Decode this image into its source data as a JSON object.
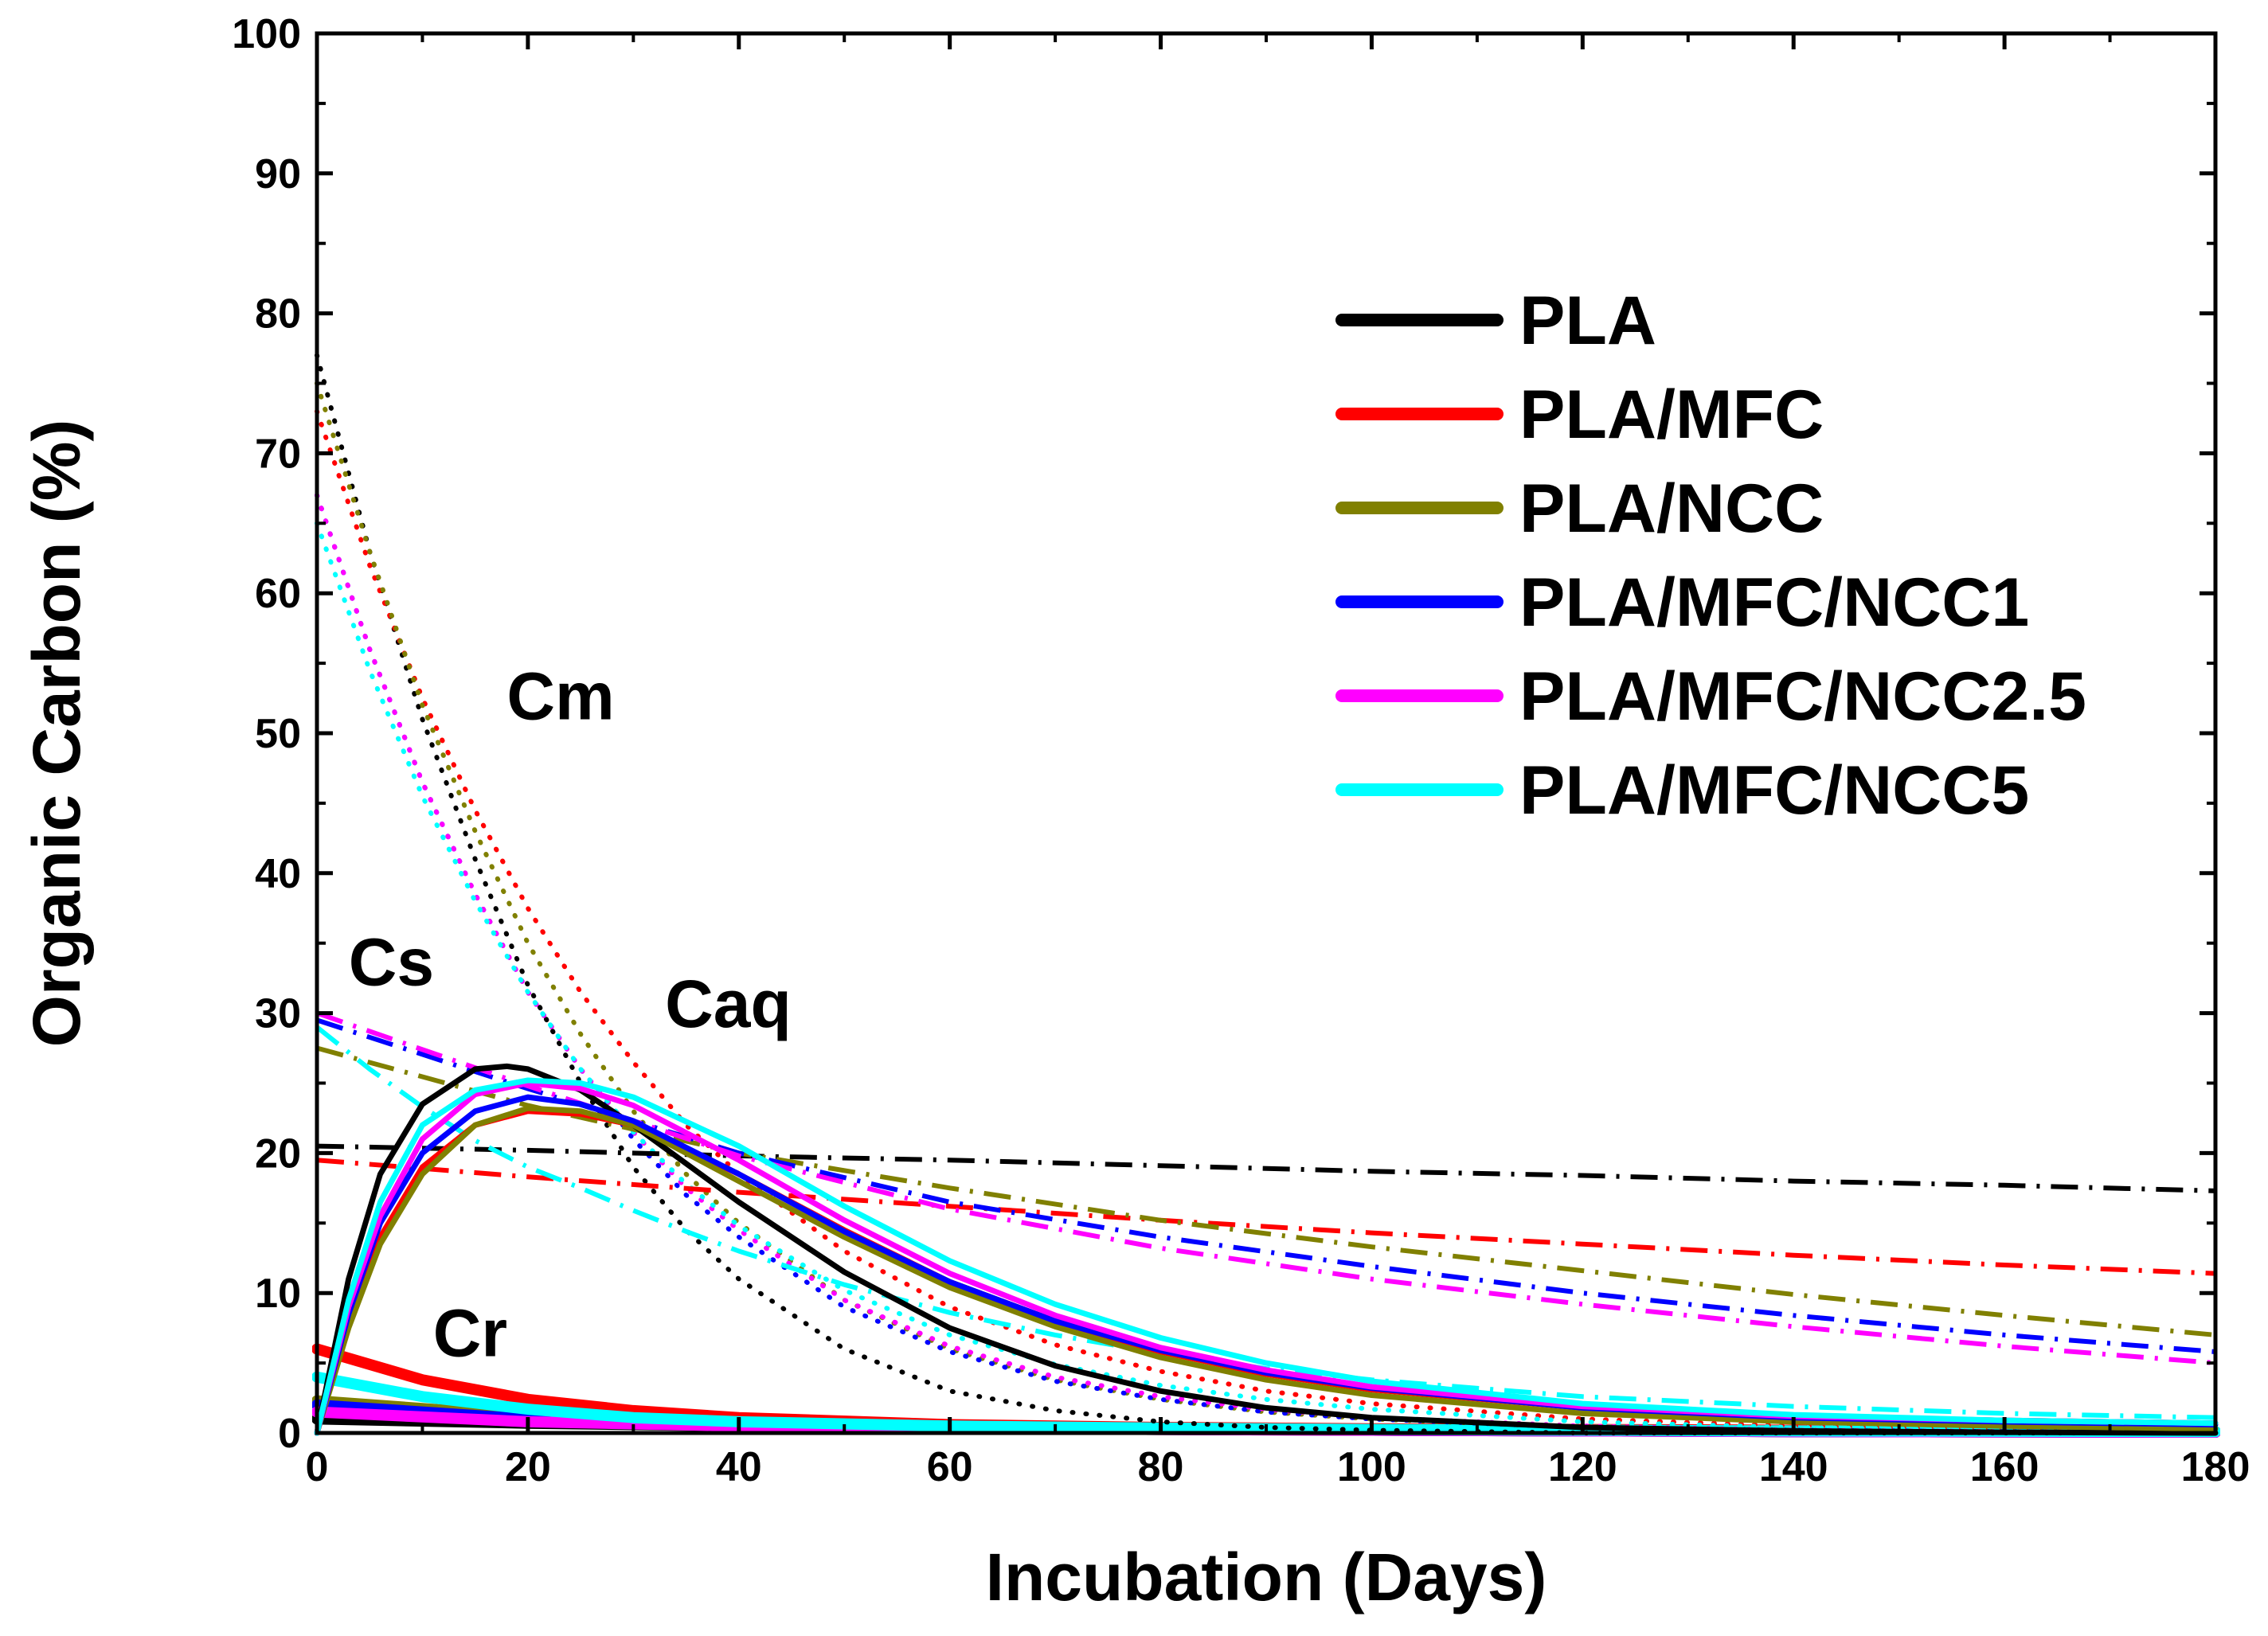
{
  "chart_data": {
    "type": "line",
    "title": "",
    "xlabel": "Incubation (Days)",
    "ylabel": "Organic Carbon (%)",
    "xlim": [
      0,
      180
    ],
    "ylim": [
      0,
      100
    ],
    "xticks": [
      "0",
      "20",
      "40",
      "60",
      "80",
      "100",
      "120",
      "140",
      "160",
      "180"
    ],
    "yticks": [
      "0",
      "10",
      "20",
      "30",
      "40",
      "50",
      "60",
      "70",
      "80",
      "90",
      "100"
    ],
    "grid": false,
    "legend_position": "top-right",
    "annotations": [
      {
        "text": "Cm",
        "x": 18,
        "y": 51
      },
      {
        "text": "Cs",
        "x": 3,
        "y": 32
      },
      {
        "text": "Caq",
        "x": 33,
        "y": 29
      },
      {
        "text": "Cr",
        "x": 11,
        "y": 5.5
      }
    ],
    "component_styles": {
      "Cm": "dotted",
      "Cs": "dash-dot",
      "Caq": "solid",
      "Cr": "solid-thick"
    },
    "series": [
      {
        "name": "PLA",
        "color": "#000000",
        "Cm": {
          "x": [
            0,
            5,
            10,
            15,
            20,
            25,
            30,
            35,
            40,
            50,
            60,
            70,
            80,
            90,
            100,
            120,
            140,
            160,
            180
          ],
          "y": [
            77,
            63,
            51,
            41,
            32,
            25,
            19,
            14.5,
            11,
            6,
            3,
            1.6,
            0.8,
            0.4,
            0.2,
            0,
            0,
            0,
            0
          ]
        },
        "Cs": {
          "x": [
            0,
            20,
            40,
            60,
            80,
            100,
            120,
            140,
            160,
            180
          ],
          "y": [
            20.5,
            20.2,
            19.8,
            19.5,
            19.1,
            18.7,
            18.4,
            18.0,
            17.7,
            17.3
          ]
        },
        "Caq": {
          "x": [
            0,
            3,
            6,
            10,
            15,
            18,
            20,
            25,
            30,
            40,
            50,
            60,
            70,
            80,
            90,
            100,
            120,
            140,
            160,
            180
          ],
          "y": [
            0,
            11,
            18.5,
            23.5,
            26,
            26.2,
            26,
            24.5,
            22,
            16.5,
            11.5,
            7.5,
            4.8,
            3.0,
            1.8,
            1.1,
            0.4,
            0.15,
            0.05,
            0
          ]
        },
        "Cr": {
          "x": [
            0,
            20,
            40,
            60,
            80,
            100,
            120,
            140,
            160,
            180
          ],
          "y": [
            1,
            0.7,
            0.5,
            0.35,
            0.25,
            0.2,
            0.15,
            0.1,
            0.08,
            0.05
          ]
        }
      },
      {
        "name": "PLA/MFC",
        "color": "#ff0000",
        "Cm": {
          "x": [
            0,
            5,
            10,
            15,
            20,
            25,
            30,
            35,
            40,
            50,
            60,
            70,
            80,
            90,
            100,
            120,
            140,
            160,
            180
          ],
          "y": [
            73,
            62,
            52.5,
            44.5,
            37.5,
            31.5,
            26.5,
            22,
            18.5,
            13,
            9,
            6.3,
            4.4,
            3,
            2.1,
            1,
            0.5,
            0.2,
            0.1
          ]
        },
        "Cs": {
          "x": [
            0,
            20,
            40,
            60,
            80,
            100,
            120,
            140,
            160,
            180
          ],
          "y": [
            19.5,
            18.3,
            17.2,
            16.2,
            15.2,
            14.3,
            13.5,
            12.7,
            12.0,
            11.4
          ]
        },
        "Caq": {
          "x": [
            0,
            3,
            6,
            10,
            15,
            20,
            25,
            30,
            40,
            50,
            60,
            70,
            80,
            90,
            100,
            120,
            140,
            160,
            180
          ],
          "y": [
            0,
            8,
            14,
            19,
            22,
            23,
            22.8,
            22,
            18.5,
            14.5,
            10.8,
            8,
            5.8,
            4.2,
            3.1,
            1.8,
            1.2,
            0.9,
            0.7
          ]
        },
        "Cr": {
          "x": [
            0,
            10,
            20,
            30,
            40,
            60,
            80,
            100,
            140,
            180
          ],
          "y": [
            6,
            3.8,
            2.4,
            1.6,
            1.1,
            0.6,
            0.4,
            0.3,
            0.2,
            0.1
          ]
        }
      },
      {
        "name": "PLA/NCC",
        "color": "#808000",
        "Cm": {
          "x": [
            0,
            5,
            10,
            15,
            20,
            25,
            30,
            35,
            40,
            50,
            60,
            70,
            80,
            90,
            100,
            120,
            140,
            160,
            180
          ],
          "y": [
            75,
            63,
            52,
            43,
            35,
            28.5,
            23,
            18.5,
            15,
            9.5,
            6,
            3.8,
            2.4,
            1.5,
            1,
            0.4,
            0.2,
            0.1,
            0
          ]
        },
        "Cs": {
          "x": [
            0,
            20,
            40,
            60,
            80,
            100,
            120,
            140,
            160,
            180
          ],
          "y": [
            27.5,
            23.4,
            20.0,
            17.5,
            15.2,
            13.3,
            11.6,
            9.9,
            8.4,
            7.0
          ]
        },
        "Caq": {
          "x": [
            0,
            3,
            6,
            10,
            15,
            20,
            25,
            30,
            40,
            50,
            60,
            70,
            80,
            90,
            100,
            120,
            140,
            160,
            180
          ],
          "y": [
            0,
            7.5,
            13.5,
            18.5,
            22,
            23.2,
            23,
            22,
            18,
            14,
            10.4,
            7.6,
            5.4,
            3.8,
            2.7,
            1.4,
            0.8,
            0.5,
            0.3
          ]
        },
        "Cr": {
          "x": [
            0,
            20,
            40,
            60,
            80,
            100,
            120,
            140,
            160,
            180
          ],
          "y": [
            2.3,
            1.2,
            0.7,
            0.45,
            0.3,
            0.2,
            0.15,
            0.1,
            0.08,
            0.05
          ]
        }
      },
      {
        "name": "PLA/MFC/NCC1",
        "color": "#0000ff",
        "Cm": {
          "x": [
            0,
            5,
            10,
            15,
            20,
            25,
            30,
            35,
            40,
            50,
            60,
            70,
            80,
            90,
            100,
            120,
            140,
            160,
            180
          ],
          "y": [
            67,
            56,
            46.5,
            38.5,
            31.5,
            26,
            21,
            17,
            14,
            9,
            5.8,
            3.7,
            2.4,
            1.5,
            1,
            0.4,
            0.2,
            0.1,
            0
          ]
        },
        "Cs": {
          "x": [
            0,
            20,
            40,
            60,
            80,
            100,
            120,
            140,
            160,
            180
          ],
          "y": [
            29.5,
            24.6,
            20.0,
            16.5,
            14.0,
            11.9,
            10.0,
            8.4,
            7.0,
            5.8
          ]
        },
        "Caq": {
          "x": [
            0,
            3,
            6,
            10,
            15,
            20,
            25,
            30,
            40,
            50,
            60,
            70,
            80,
            90,
            100,
            120,
            140,
            160,
            180
          ],
          "y": [
            0,
            8.5,
            15,
            20,
            23,
            24,
            23.5,
            22.3,
            18.5,
            14.4,
            10.8,
            8,
            5.9,
            4.3,
            3.2,
            1.8,
            1.1,
            0.8,
            0.6
          ]
        },
        "Cr": {
          "x": [
            0,
            20,
            40,
            60,
            80,
            100,
            120,
            140,
            160,
            180
          ],
          "y": [
            2.0,
            1.0,
            0.6,
            0.4,
            0.3,
            0.2,
            0.15,
            0.1,
            0.08,
            0.05
          ]
        }
      },
      {
        "name": "PLA/MFC/NCC2.5",
        "color": "#ff00ff",
        "Cm": {
          "x": [
            0,
            5,
            10,
            15,
            20,
            25,
            30,
            35,
            40,
            50,
            60,
            70,
            80,
            90,
            100,
            120,
            140,
            160,
            180
          ],
          "y": [
            67,
            56,
            46.5,
            38.5,
            31.5,
            26,
            21.5,
            17.5,
            14.5,
            9.5,
            6.2,
            4,
            2.6,
            1.7,
            1.1,
            0.5,
            0.2,
            0.1,
            0
          ]
        },
        "Cs": {
          "x": [
            0,
            20,
            40,
            60,
            80,
            100,
            120,
            140,
            160,
            180
          ],
          "y": [
            30,
            24.8,
            19.8,
            16.0,
            13.2,
            11.0,
            9.2,
            7.6,
            6.2,
            5.0
          ]
        },
        "Caq": {
          "x": [
            0,
            3,
            6,
            10,
            15,
            20,
            25,
            30,
            40,
            50,
            60,
            70,
            80,
            90,
            100,
            120,
            140,
            160,
            180
          ],
          "y": [
            0,
            9,
            15.5,
            21,
            24.2,
            25,
            24.6,
            23.4,
            19.5,
            15.2,
            11.4,
            8.4,
            6.1,
            4.5,
            3.3,
            1.9,
            1.2,
            0.9,
            0.7
          ]
        },
        "Cr": {
          "x": [
            0,
            20,
            40,
            60,
            80,
            100,
            120,
            140,
            160,
            180
          ],
          "y": [
            1.5,
            0.8,
            0.5,
            0.35,
            0.25,
            0.2,
            0.15,
            0.1,
            0.08,
            0.05
          ]
        }
      },
      {
        "name": "PLA/MFC/NCC5",
        "color": "#00ffff",
        "Cm": {
          "x": [
            0,
            5,
            10,
            15,
            20,
            25,
            30,
            35,
            40,
            50,
            60,
            70,
            80,
            90,
            100,
            120,
            140,
            160,
            180
          ],
          "y": [
            65,
            54.5,
            45.5,
            38,
            31.5,
            26,
            21.5,
            17.8,
            14.8,
            10.2,
            7,
            4.9,
            3.4,
            2.4,
            1.7,
            0.8,
            0.4,
            0.2,
            0.1
          ]
        },
        "Cs": {
          "x": [
            0,
            5,
            10,
            15,
            20,
            25,
            30,
            35,
            40,
            50,
            60,
            70,
            80,
            90,
            100,
            120,
            140,
            160,
            180
          ],
          "y": [
            29,
            26,
            23.3,
            20.9,
            19,
            17.5,
            15.9,
            14.4,
            13,
            10.6,
            8.6,
            7,
            5.7,
            4.6,
            3.8,
            2.6,
            1.9,
            1.4,
            1.1
          ]
        },
        "Caq": {
          "x": [
            0,
            3,
            6,
            10,
            15,
            20,
            25,
            30,
            40,
            50,
            60,
            70,
            80,
            90,
            100,
            120,
            140,
            160,
            180
          ],
          "y": [
            0,
            9.5,
            16.5,
            22,
            24.5,
            25.2,
            25,
            24,
            20.5,
            16.2,
            12.3,
            9.2,
            6.8,
            5,
            3.7,
            2.1,
            1.3,
            0.9,
            0.7
          ]
        },
        "Cr": {
          "x": [
            0,
            10,
            20,
            30,
            40,
            60,
            80,
            100,
            140,
            180
          ],
          "y": [
            4,
            2.6,
            1.7,
            1.1,
            0.8,
            0.5,
            0.35,
            0.25,
            0.15,
            0.1
          ]
        }
      }
    ]
  }
}
